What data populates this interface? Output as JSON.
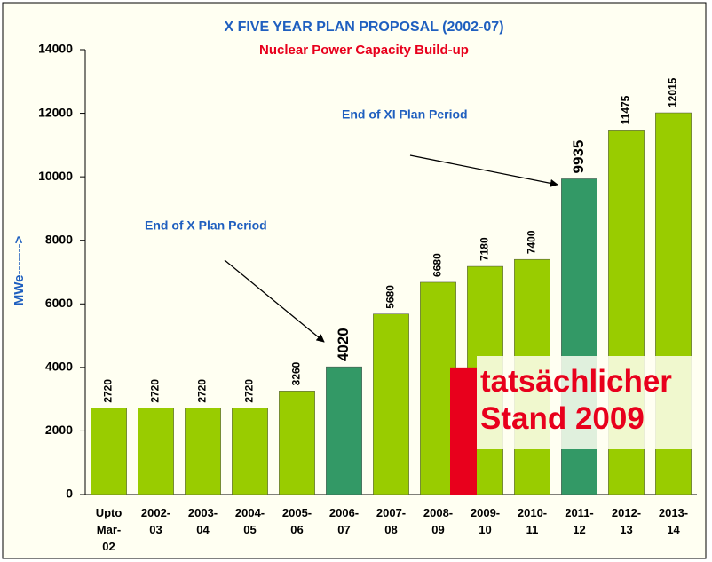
{
  "chart_data": {
    "type": "bar",
    "title": "X FIVE YEAR PLAN PROPOSAL (2002-07)",
    "subtitle": "Nuclear Power Capacity Build-up",
    "y_label": "MWe------->",
    "categories": [
      "Upto Mar-02",
      "2002-03",
      "2003-04",
      "2004-05",
      "2005-06",
      "2006-07",
      "2007-08",
      "2008-09",
      "2009-10",
      "2010-11",
      "2011-12",
      "2012-13",
      "2013-14"
    ],
    "values": [
      2720,
      2720,
      2720,
      2720,
      3260,
      4020,
      5680,
      6680,
      7180,
      7400,
      9935,
      11475,
      12015
    ],
    "colors": [
      "#99cc00",
      "#99cc00",
      "#99cc00",
      "#99cc00",
      "#99cc00",
      "#339966",
      "#99cc00",
      "#99cc00",
      "#99cc00",
      "#99cc00",
      "#339966",
      "#99cc00",
      "#99cc00"
    ],
    "ylim": [
      0,
      14000
    ],
    "yticks": [
      0,
      2000,
      4000,
      6000,
      8000,
      10000,
      12000,
      14000
    ],
    "annotations": [
      "End of X Plan Period",
      "End of XI Plan Period"
    ],
    "actual": {
      "label": "tatsächlicher Stand 2009",
      "value": 4000,
      "color": "#e8001c"
    }
  }
}
